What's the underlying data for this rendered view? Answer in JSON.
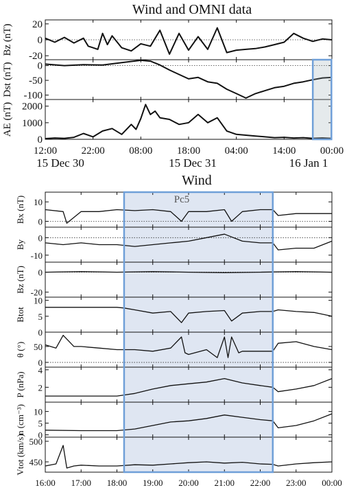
{
  "top": {
    "title": "Wind and OMNI data",
    "x_tick_labels": [
      "12:00",
      "22:00",
      "08:00",
      "18:00",
      "04:00",
      "14:00",
      "00:00"
    ],
    "date_labels": [
      "15 Dec 30",
      "15 Dec 31",
      "16 Jan 1"
    ],
    "highlight_color": "#6f9fd8"
  },
  "bottom": {
    "title": "Wind",
    "shade_label": "Pc5",
    "x_tick_labels": [
      "16:00",
      "17:00",
      "18:00",
      "19:00",
      "20:00",
      "21:00",
      "22:00",
      "23:00",
      "00:00"
    ],
    "shade_color": "#dfe6f2",
    "border_color": "#6f9fd8"
  },
  "chart_data": [
    {
      "type": "line",
      "title": "Wind and OMNI data",
      "x_unit": "hours since 15 Dec 30 12:00",
      "xlim": [
        0,
        60
      ],
      "panels": [
        {
          "ylabel": "Bz (nT)",
          "yticks": [
            20,
            0,
            -20
          ],
          "ylim": [
            -25,
            25
          ],
          "zero_line": true,
          "x": [
            0,
            2,
            4,
            6,
            8,
            9,
            10,
            11,
            12,
            13,
            14,
            16,
            18,
            20,
            22,
            24,
            26,
            28,
            30,
            32,
            34,
            36,
            38,
            40,
            42,
            44,
            46,
            48,
            50,
            52,
            54,
            56,
            58,
            60
          ],
          "y": [
            2,
            -3,
            3,
            -4,
            2,
            -8,
            -10,
            -12,
            8,
            -6,
            5,
            -10,
            -14,
            -5,
            -8,
            12,
            -18,
            8,
            -13,
            4,
            -12,
            15,
            -16,
            -13,
            -12,
            -11,
            -9,
            -6,
            -3,
            8,
            2,
            -2,
            1,
            0
          ]
        },
        {
          "ylabel": "Dst (nT)",
          "yticks": [
            0,
            -50,
            -100
          ],
          "ylim": [
            -115,
            20
          ],
          "zero_line": true,
          "x": [
            0,
            4,
            8,
            12,
            16,
            20,
            22,
            24,
            26,
            28,
            30,
            32,
            34,
            36,
            38,
            40,
            42,
            44,
            46,
            48,
            50,
            52,
            54,
            56,
            58,
            60
          ],
          "y": [
            5,
            0,
            3,
            2,
            10,
            18,
            15,
            2,
            -15,
            -30,
            -45,
            -40,
            -55,
            -60,
            -80,
            -95,
            -110,
            -95,
            -85,
            -75,
            -70,
            -60,
            -55,
            -48,
            -42,
            -40
          ]
        },
        {
          "ylabel": "AE (nT)",
          "yticks": [
            2000,
            1000,
            0
          ],
          "ylim": [
            0,
            2400
          ],
          "x": [
            0,
            2,
            4,
            6,
            8,
            10,
            12,
            14,
            16,
            18,
            19,
            20,
            21,
            22,
            23,
            24,
            26,
            28,
            30,
            32,
            34,
            36,
            38,
            40,
            42,
            44,
            46,
            48,
            50,
            52,
            54,
            56,
            58,
            60
          ],
          "y": [
            40,
            80,
            60,
            120,
            350,
            150,
            500,
            650,
            300,
            900,
            600,
            1250,
            2100,
            1500,
            1700,
            1300,
            1200,
            900,
            1000,
            1500,
            1000,
            1300,
            500,
            300,
            250,
            200,
            150,
            100,
            120,
            80,
            100,
            60,
            80,
            50
          ]
        }
      ],
      "highlight_window": [
        56,
        59.9
      ]
    },
    {
      "type": "line",
      "title": "Wind",
      "x_unit": "hour of day (UT)",
      "xlim": [
        16,
        24
      ],
      "shaded_interval": [
        18.2,
        22.35
      ],
      "panels": [
        {
          "ylabel": "Bx (nT)",
          "yticks": [
            10,
            0
          ],
          "ylim": [
            -3,
            15
          ],
          "zero_line": true,
          "x": [
            16,
            16.5,
            16.6,
            17,
            17.5,
            18,
            18.5,
            19,
            19.5,
            19.8,
            20,
            20.5,
            21,
            21.2,
            21.5,
            22,
            22.35,
            22.5,
            23,
            23.5,
            24
          ],
          "y": [
            6,
            5,
            -1,
            5,
            5,
            6,
            5.5,
            6,
            5,
            0,
            5,
            5,
            6,
            0,
            5,
            6,
            6,
            3,
            4,
            4,
            4
          ]
        },
        {
          "ylabel": "By",
          "yticks": [
            0,
            -10
          ],
          "ylim": [
            -14,
            6
          ],
          "zero_line": true,
          "x": [
            16,
            16.5,
            17,
            17.5,
            18,
            18.5,
            19,
            19.5,
            20,
            20.5,
            21,
            21.5,
            22,
            22.35,
            22.5,
            23,
            23.5,
            24
          ],
          "y": [
            -3,
            -4,
            -3,
            -4,
            -4,
            -5,
            -4,
            -3,
            -2,
            0,
            2,
            -2,
            -3,
            -3,
            -7,
            -6,
            -6,
            -2
          ]
        },
        {
          "ylabel": "Bz (nT)",
          "yticks": [
            0,
            -20
          ],
          "ylim": [
            -25,
            10
          ],
          "zero_line": true,
          "x": [
            16,
            17,
            18,
            19,
            20,
            21,
            22,
            23,
            24
          ],
          "y": [
            0,
            0.5,
            0,
            0.5,
            0,
            -0.5,
            0,
            0.5,
            0
          ]
        },
        {
          "ylabel": "Btot",
          "yticks": [
            10,
            5,
            0
          ],
          "ylim": [
            0,
            11
          ],
          "x": [
            16,
            17,
            18,
            18.2,
            18.5,
            19,
            19.5,
            19.8,
            20,
            20.5,
            21,
            21.2,
            21.5,
            22,
            22.35,
            22.5,
            23,
            23.5,
            24
          ],
          "y": [
            7.8,
            7.8,
            7.8,
            7.6,
            7,
            6,
            6.5,
            3,
            6,
            6.5,
            6.8,
            3.5,
            6,
            6.5,
            6.5,
            7,
            6.5,
            6.2,
            5
          ]
        },
        {
          "ylabel": "θ (°)",
          "yticks": [
            50,
            0
          ],
          "ylim": [
            -15,
            95
          ],
          "zero_line": true,
          "x": [
            16,
            16.3,
            16.5,
            16.8,
            17,
            17.5,
            18,
            18.5,
            19,
            19.5,
            19.8,
            19.9,
            20,
            20.5,
            20.8,
            21,
            21.1,
            21.2,
            21.4,
            21.5,
            22,
            22.35,
            22.5,
            23,
            23.5,
            24
          ],
          "y": [
            55,
            45,
            85,
            50,
            50,
            45,
            40,
            40,
            35,
            45,
            80,
            30,
            25,
            40,
            15,
            80,
            15,
            80,
            30,
            35,
            35,
            35,
            60,
            65,
            50,
            40
          ]
        },
        {
          "ylabel": "P (nPa)",
          "yticks": [
            4,
            2
          ],
          "ylim": [
            0.3,
            4.3
          ],
          "x": [
            16,
            17,
            18,
            18.5,
            19,
            19.5,
            20,
            20.5,
            21,
            21.5,
            22,
            22.35,
            22.5,
            23,
            23.5,
            24
          ],
          "y": [
            1,
            1,
            1,
            1.3,
            1.8,
            2.2,
            2.4,
            2.6,
            3,
            2.5,
            2.2,
            2,
            1.5,
            1.8,
            2.2,
            3
          ]
        },
        {
          "ylabel": "n (cm⁻³)",
          "yticks": [
            10,
            5,
            0
          ],
          "ylim": [
            -1,
            14
          ],
          "x": [
            16,
            17,
            18,
            18.5,
            19,
            19.5,
            20,
            20.5,
            21,
            21.5,
            22,
            22.35,
            22.5,
            23,
            23.5,
            24
          ],
          "y": [
            2,
            1.8,
            1.8,
            2.5,
            4,
            5.5,
            6,
            7,
            8.5,
            7.5,
            6.5,
            6,
            3,
            4,
            6,
            9
          ]
        },
        {
          "ylabel": "Vtot (km/s)",
          "yticks": [
            500,
            450
          ],
          "ylim": [
            425,
            510
          ],
          "x": [
            16,
            16.3,
            16.5,
            16.6,
            16.8,
            17,
            17.5,
            18,
            18.5,
            19,
            19.5,
            20,
            20.5,
            21,
            21.5,
            22,
            22.35,
            22.5,
            23,
            23.5,
            24
          ],
          "y": [
            440,
            445,
            490,
            435,
            440,
            442,
            440,
            440,
            443,
            442,
            445,
            448,
            450,
            447,
            449,
            445,
            444,
            440,
            445,
            448,
            450
          ]
        }
      ]
    }
  ]
}
